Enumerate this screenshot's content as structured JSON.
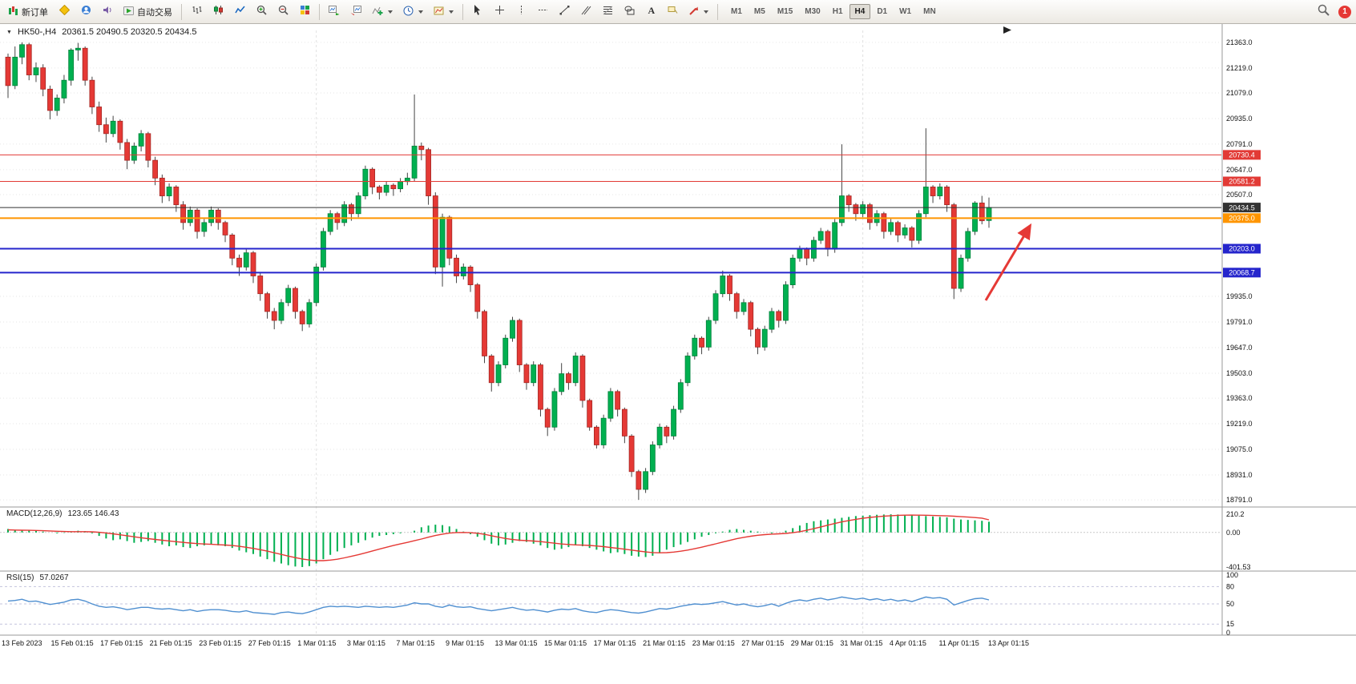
{
  "toolbar": {
    "new_order": "新订单",
    "autotrading": "自动交易",
    "timeframes": [
      "M1",
      "M5",
      "M15",
      "M30",
      "H1",
      "H4",
      "D1",
      "W1",
      "MN"
    ],
    "active_timeframe": "H4",
    "badge": "1"
  },
  "chart": {
    "symbol_header": "HK50-,H4",
    "ohlc_header": "20361.5 20490.5 20320.5 20434.5",
    "price_axis_labels": [
      "21363.0",
      "21219.0",
      "21079.0",
      "20935.0",
      "20791.0",
      "20647.0",
      "20507.0",
      "19935.0",
      "19791.0",
      "19647.0",
      "19503.0",
      "19363.0",
      "19219.0",
      "19075.0",
      "18931.0",
      "18791.0"
    ],
    "levels": [
      {
        "price": 20730.4,
        "label": "20730.4",
        "color": "#e23a35",
        "width": 1
      },
      {
        "price": 20581.2,
        "label": "20581.2",
        "color": "#e23a35",
        "width": 1
      },
      {
        "price": 20434.5,
        "label": "20434.5",
        "color": "#333333",
        "width": 1
      },
      {
        "price": 20375.0,
        "label": "20375.0",
        "color": "#ff9500",
        "width": 2
      },
      {
        "price": 20203.0,
        "label": "20203.0",
        "color": "#2525cc",
        "width": 2
      },
      {
        "price": 20068.7,
        "label": "20068.7",
        "color": "#2525cc",
        "width": 2
      }
    ],
    "colors": {
      "bull": "#00b050",
      "bear": "#e53935",
      "wick": "#444444",
      "grid": "#e6e6e6",
      "arrow": "#e53935",
      "axis_text": "#111111"
    }
  },
  "chart_data": {
    "type": "candlestick",
    "symbol": "HK50-",
    "timeframe": "H4",
    "y_range": [
      18760,
      21430
    ],
    "candles": [
      [
        21280,
        21300,
        21050,
        21120
      ],
      [
        21120,
        21340,
        21100,
        21280
      ],
      [
        21280,
        21363,
        21240,
        21350
      ],
      [
        21350,
        21360,
        21150,
        21180
      ],
      [
        21180,
        21250,
        21140,
        21220
      ],
      [
        21220,
        21240,
        21060,
        21100
      ],
      [
        21100,
        21120,
        20930,
        20980
      ],
      [
        20980,
        21070,
        20950,
        21050
      ],
      [
        21050,
        21180,
        21020,
        21150
      ],
      [
        21150,
        21330,
        21120,
        21320
      ],
      [
        21320,
        21360,
        21260,
        21330
      ],
      [
        21330,
        21340,
        21120,
        21150
      ],
      [
        21150,
        21170,
        20960,
        21000
      ],
      [
        21000,
        21030,
        20860,
        20900
      ],
      [
        20900,
        20940,
        20800,
        20850
      ],
      [
        20850,
        20950,
        20830,
        20920
      ],
      [
        20920,
        20930,
        20760,
        20800
      ],
      [
        20800,
        20820,
        20650,
        20700
      ],
      [
        20700,
        20800,
        20680,
        20780
      ],
      [
        20780,
        20870,
        20750,
        20850
      ],
      [
        20850,
        20860,
        20660,
        20700
      ],
      [
        20700,
        20720,
        20560,
        20600
      ],
      [
        20600,
        20620,
        20460,
        20500
      ],
      [
        20500,
        20570,
        20470,
        20550
      ],
      [
        20550,
        20560,
        20410,
        20450
      ],
      [
        20450,
        20470,
        20310,
        20350
      ],
      [
        20350,
        20440,
        20330,
        20420
      ],
      [
        20420,
        20430,
        20260,
        20300
      ],
      [
        20300,
        20370,
        20270,
        20350
      ],
      [
        20350,
        20440,
        20330,
        20420
      ],
      [
        20420,
        20430,
        20310,
        20350
      ],
      [
        20350,
        20360,
        20240,
        20280
      ],
      [
        20280,
        20290,
        20110,
        20150
      ],
      [
        20150,
        20170,
        20050,
        20100
      ],
      [
        20100,
        20200,
        20080,
        20180
      ],
      [
        20180,
        20190,
        20010,
        20050
      ],
      [
        20050,
        20070,
        19910,
        19950
      ],
      [
        19950,
        19960,
        19810,
        19850
      ],
      [
        19850,
        19870,
        19750,
        19800
      ],
      [
        19800,
        19920,
        19780,
        19900
      ],
      [
        19900,
        20000,
        19880,
        19980
      ],
      [
        19980,
        19990,
        19810,
        19850
      ],
      [
        19850,
        19860,
        19740,
        19780
      ],
      [
        19780,
        19920,
        19760,
        19900
      ],
      [
        19900,
        20120,
        19880,
        20100
      ],
      [
        20100,
        20320,
        20080,
        20300
      ],
      [
        20300,
        20420,
        20280,
        20400
      ],
      [
        20400,
        20410,
        20310,
        20350
      ],
      [
        20350,
        20470,
        20330,
        20450
      ],
      [
        20450,
        20460,
        20360,
        20400
      ],
      [
        20400,
        20520,
        20380,
        20500
      ],
      [
        20500,
        20670,
        20480,
        20650
      ],
      [
        20650,
        20660,
        20510,
        20550
      ],
      [
        20550,
        20560,
        20480,
        20520
      ],
      [
        20520,
        20580,
        20500,
        20560
      ],
      [
        20560,
        20570,
        20500,
        20540
      ],
      [
        20540,
        20600,
        20520,
        20580
      ],
      [
        20580,
        20630,
        20560,
        20600
      ],
      [
        20600,
        21070,
        20580,
        20780
      ],
      [
        20780,
        20800,
        20700,
        20760
      ],
      [
        20760,
        20770,
        20450,
        20500
      ],
      [
        20500,
        20520,
        20060,
        20100
      ],
      [
        20100,
        20400,
        19990,
        20380
      ],
      [
        20380,
        20390,
        20110,
        20150
      ],
      [
        20150,
        20170,
        20010,
        20050
      ],
      [
        20050,
        20120,
        20030,
        20100
      ],
      [
        20100,
        20110,
        19960,
        20000
      ],
      [
        20000,
        20010,
        19810,
        19850
      ],
      [
        19850,
        19860,
        19560,
        19600
      ],
      [
        19600,
        19610,
        19400,
        19450
      ],
      [
        19450,
        19570,
        19430,
        19550
      ],
      [
        19550,
        19720,
        19530,
        19700
      ],
      [
        19700,
        19820,
        19680,
        19800
      ],
      [
        19800,
        19810,
        19510,
        19550
      ],
      [
        19550,
        19560,
        19410,
        19450
      ],
      [
        19450,
        19570,
        19430,
        19550
      ],
      [
        19550,
        19560,
        19260,
        19300
      ],
      [
        19300,
        19310,
        19150,
        19200
      ],
      [
        19200,
        19420,
        19180,
        19400
      ],
      [
        19400,
        19560,
        19380,
        19500
      ],
      [
        19500,
        19510,
        19410,
        19450
      ],
      [
        19450,
        19620,
        19430,
        19600
      ],
      [
        19600,
        19610,
        19310,
        19350
      ],
      [
        19350,
        19360,
        19180,
        19200
      ],
      [
        19200,
        19210,
        19080,
        19100
      ],
      [
        19100,
        19270,
        19080,
        19250
      ],
      [
        19250,
        19420,
        19230,
        19400
      ],
      [
        19400,
        19410,
        19260,
        19300
      ],
      [
        19300,
        19310,
        19110,
        19150
      ],
      [
        19150,
        19160,
        18920,
        18950
      ],
      [
        18950,
        18960,
        18791,
        18850
      ],
      [
        18850,
        18970,
        18830,
        18950
      ],
      [
        18950,
        19120,
        18930,
        19100
      ],
      [
        19100,
        19220,
        19080,
        19200
      ],
      [
        19200,
        19210,
        19110,
        19150
      ],
      [
        19150,
        19320,
        19130,
        19300
      ],
      [
        19300,
        19470,
        19280,
        19450
      ],
      [
        19450,
        19620,
        19430,
        19600
      ],
      [
        19600,
        19720,
        19580,
        19700
      ],
      [
        19700,
        19710,
        19610,
        19650
      ],
      [
        19650,
        19820,
        19630,
        19800
      ],
      [
        19800,
        19970,
        19780,
        19950
      ],
      [
        19950,
        20080,
        19930,
        20050
      ],
      [
        20050,
        20060,
        19910,
        19950
      ],
      [
        19950,
        19960,
        19810,
        19850
      ],
      [
        19850,
        19920,
        19830,
        19900
      ],
      [
        19900,
        19910,
        19710,
        19750
      ],
      [
        19750,
        19760,
        19610,
        19650
      ],
      [
        19650,
        19770,
        19630,
        19750
      ],
      [
        19750,
        19870,
        19730,
        19850
      ],
      [
        19850,
        19860,
        19760,
        19800
      ],
      [
        19800,
        20020,
        19780,
        20000
      ],
      [
        20000,
        20170,
        19980,
        20150
      ],
      [
        20150,
        20220,
        20130,
        20200
      ],
      [
        20200,
        20210,
        20110,
        20150
      ],
      [
        20150,
        20270,
        20130,
        20250
      ],
      [
        20250,
        20320,
        20230,
        20300
      ],
      [
        20300,
        20310,
        20160,
        20200
      ],
      [
        20200,
        20370,
        20180,
        20350
      ],
      [
        20350,
        20790,
        20330,
        20500
      ],
      [
        20500,
        20510,
        20410,
        20450
      ],
      [
        20450,
        20460,
        20360,
        20400
      ],
      [
        20400,
        20470,
        20380,
        20450
      ],
      [
        20450,
        20460,
        20310,
        20350
      ],
      [
        20350,
        20420,
        20330,
        20400
      ],
      [
        20400,
        20410,
        20260,
        20300
      ],
      [
        20300,
        20370,
        20280,
        20350
      ],
      [
        20350,
        20360,
        20240,
        20280
      ],
      [
        20280,
        20340,
        20260,
        20320
      ],
      [
        20320,
        20330,
        20210,
        20250
      ],
      [
        20250,
        20420,
        20230,
        20400
      ],
      [
        20400,
        20880,
        20380,
        20550
      ],
      [
        20550,
        20560,
        20460,
        20500
      ],
      [
        20500,
        20570,
        20480,
        20550
      ],
      [
        20550,
        20560,
        20410,
        20450
      ],
      [
        20450,
        20460,
        19920,
        19980
      ],
      [
        19980,
        20170,
        19960,
        20150
      ],
      [
        20150,
        20320,
        20130,
        20300
      ],
      [
        20300,
        20470,
        20280,
        20460
      ],
      [
        20460,
        20500,
        20340,
        20360
      ],
      [
        20361.5,
        20490.5,
        20320.5,
        20434.5
      ]
    ]
  },
  "macd": {
    "title": "MACD(12,26,9)",
    "values": "123.65 146.43",
    "axis_labels": [
      "210.2",
      "0.00",
      "-401.53"
    ],
    "range": [
      -420,
      230
    ],
    "colors": {
      "hist": "#00b050",
      "signal": "#e53935"
    },
    "hist": [
      40,
      30,
      25,
      30,
      20,
      10,
      0,
      -10,
      -5,
      10,
      20,
      15,
      -10,
      -40,
      -70,
      -90,
      -80,
      -100,
      -120,
      -110,
      -100,
      -120,
      -140,
      -160,
      -150,
      -170,
      -180,
      -160,
      -150,
      -140,
      -150,
      -160,
      -180,
      -210,
      -230,
      -250,
      -280,
      -310,
      -340,
      -360,
      -380,
      -395,
      -401,
      -390,
      -360,
      -310,
      -260,
      -220,
      -180,
      -150,
      -120,
      -90,
      -60,
      -40,
      -30,
      -20,
      -10,
      0,
      20,
      60,
      80,
      90,
      85,
      70,
      40,
      10,
      -20,
      -50,
      -90,
      -130,
      -150,
      -140,
      -120,
      -100,
      -110,
      -130,
      -150,
      -180,
      -200,
      -190,
      -170,
      -150,
      -160,
      -180,
      -200,
      -220,
      -240,
      -230,
      -250,
      -270,
      -280,
      -285,
      -270,
      -240,
      -200,
      -170,
      -140,
      -110,
      -80,
      -50,
      -30,
      -10,
      10,
      30,
      40,
      30,
      20,
      10,
      0,
      -10,
      0,
      20,
      50,
      80,
      110,
      130,
      140,
      150,
      160,
      170,
      180,
      190,
      195,
      200,
      205,
      208,
      210,
      208,
      205,
      200,
      195,
      190,
      185,
      180,
      175,
      160,
      150,
      145,
      140,
      135,
      124
    ],
    "signal": [
      30,
      28,
      26,
      25,
      23,
      20,
      17,
      14,
      11,
      9,
      9,
      9,
      7,
      2,
      -6,
      -16,
      -27,
      -38,
      -50,
      -62,
      -72,
      -81,
      -90,
      -99,
      -107,
      -115,
      -123,
      -129,
      -134,
      -138,
      -142,
      -146,
      -152,
      -161,
      -172,
      -185,
      -200,
      -217,
      -236,
      -255,
      -274,
      -292,
      -308,
      -320,
      -327,
      -327,
      -321,
      -310,
      -295,
      -277,
      -258,
      -237,
      -215,
      -193,
      -172,
      -152,
      -133,
      -115,
      -96,
      -76,
      -55,
      -36,
      -20,
      -8,
      -1,
      0,
      -3,
      -10,
      -22,
      -38,
      -55,
      -70,
      -82,
      -90,
      -95,
      -100,
      -106,
      -115,
      -125,
      -134,
      -140,
      -144,
      -147,
      -151,
      -157,
      -165,
      -175,
      -184,
      -194,
      -205,
      -216,
      -226,
      -233,
      -236,
      -234,
      -228,
      -218,
      -205,
      -189,
      -171,
      -152,
      -132,
      -112,
      -92,
      -73,
      -57,
      -44,
      -33,
      -25,
      -20,
      -16,
      -11,
      -3,
      9,
      25,
      44,
      64,
      84,
      104,
      122,
      138,
      152,
      164,
      174,
      182,
      189,
      194,
      198,
      200,
      201,
      200,
      199,
      197,
      195,
      192,
      188,
      183,
      178,
      172,
      166,
      146
    ]
  },
  "rsi": {
    "title": "RSI(15)",
    "value": "57.0267",
    "axis_labels": [
      "100",
      "80",
      "50",
      "15",
      "0"
    ],
    "levels": [
      80,
      50,
      15
    ],
    "color": "#4f8fd0",
    "values": [
      55,
      56,
      58,
      54,
      55,
      52,
      49,
      51,
      53,
      57,
      58,
      55,
      50,
      46,
      44,
      45,
      43,
      40,
      42,
      44,
      44,
      42,
      41,
      42,
      40,
      38,
      40,
      37,
      39,
      40,
      40,
      39,
      37,
      36,
      38,
      35,
      34,
      33,
      32,
      35,
      36,
      34,
      33,
      36,
      40,
      44,
      46,
      45,
      46,
      45,
      44,
      46,
      45,
      44,
      45,
      44,
      46,
      48,
      52,
      50,
      50,
      46,
      44,
      48,
      45,
      44,
      45,
      42,
      40,
      38,
      40,
      42,
      44,
      41,
      39,
      40,
      38,
      36,
      39,
      41,
      40,
      42,
      38,
      36,
      35,
      38,
      40,
      39,
      37,
      35,
      34,
      36,
      39,
      42,
      41,
      43,
      46,
      48,
      50,
      49,
      50,
      52,
      54,
      51,
      48,
      50,
      47,
      45,
      47,
      50,
      46,
      51,
      55,
      57,
      55,
      58,
      60,
      57,
      59,
      62,
      60,
      58,
      60,
      57,
      59,
      56,
      58,
      55,
      57,
      54,
      58,
      62,
      60,
      61,
      58,
      48,
      52,
      56,
      59,
      60,
      57
    ]
  },
  "time_axis": {
    "labels": [
      "13 Feb 2023",
      "15 Feb 01:15",
      "17 Feb 01:15",
      "21 Feb 01:15",
      "23 Feb 01:15",
      "27 Feb 01:15",
      "1 Mar 01:15",
      "3 Mar 01:15",
      "7 Mar 01:15",
      "9 Mar 01:15",
      "13 Mar 01:15",
      "15 Mar 01:15",
      "17 Mar 01:15",
      "21 Mar 01:15",
      "23 Mar 01:15",
      "27 Mar 01:15",
      "29 Mar 01:15",
      "31 Mar 01:15",
      "4 Apr 01:15",
      "11 Apr 01:15",
      "13 Apr 01:15"
    ]
  }
}
